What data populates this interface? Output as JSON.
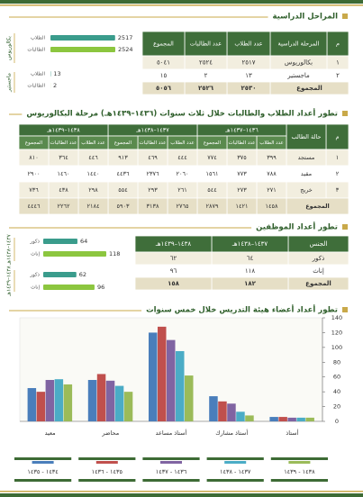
{
  "study_stages": {
    "title": "المراحل الدراسية",
    "table": {
      "header": [
        "م",
        "المرحلة الدراسية",
        "عدد الطلاب",
        "عدد الطالبات",
        "المجموع"
      ],
      "rows": [
        [
          "١",
          "بكالوريوس",
          "٢٥١٧",
          "٢٥٢٤",
          "٥٠٤١"
        ],
        [
          "٢",
          "ماجستير",
          "١٣",
          "٢",
          "١٥"
        ]
      ],
      "total": {
        "label": "المجموع",
        "values": [
          "٢٥٣٠",
          "٢٥٢٦",
          "٥٠٥٦"
        ]
      }
    }
  },
  "students": {
    "title": "تطور أعداد الطلاب والطالبات خلال ثلاث سنوات (١٤٣٦–١٤٣٩هـ) مرحلة البكالوريوس",
    "table": {
      "columns": [
        "م",
        "حالة الطالب"
      ],
      "years": [
        "١٤٣٦–١٤٣٧هـ",
        "١٤٣٧–١٤٣٨هـ",
        "١٤٣٨–١٤٣٩هـ"
      ],
      "subheaders": [
        "عدد الطلاب",
        "عدد الطالبات",
        "المجموع"
      ],
      "rows": [
        [
          "١",
          "مستجد",
          "٣٩٩",
          "٣٧٥",
          "٧٧٤",
          "٤٤٤",
          "٤٦٩",
          "٩١٣",
          "٤٤٦",
          "٣٦٤",
          "٨١٠"
        ],
        [
          "٢",
          "مقيد",
          "٧٨٨",
          "٧٧٣",
          "١٥٦١",
          "٢٠٦٠",
          "٢٣٧٦",
          "٤٤٣٦",
          "١٤٤٠",
          "١٤٦٠",
          "٢٩٠٠"
        ],
        [
          "٣",
          "خريج",
          "٢٧١",
          "٢٧٣",
          "٥٤٤",
          "٢٦١",
          "٢٩٣",
          "٥٥٤",
          "٢٩٨",
          "٤٣٨",
          "٧٣٦"
        ]
      ],
      "total": {
        "label": "المجموع",
        "values": [
          "١٤٥٨",
          "١٤٢١",
          "٢٨٧٩",
          "٢٧٦٥",
          "٣١٣٨",
          "٥٩٠٣",
          "٢١٨٤",
          "٢٢٦٢",
          "٤٤٤٦"
        ]
      }
    }
  },
  "employees": {
    "title": "تطور أعداد الموظفين",
    "table": {
      "header": [
        "الجنس",
        "١٤٣٧–١٤٣٨هـ",
        "١٤٣٨–١٤٣٩هـ"
      ],
      "rows": [
        [
          "ذكور",
          "٦٤",
          "٦٢"
        ],
        [
          "إناث",
          "١١٨",
          "٩٦"
        ],
        [
          "المجموع",
          "١٨٢",
          "١٥٨"
        ]
      ]
    }
  },
  "chart_data": [
    {
      "type": "hbar",
      "categories": [
        "بكالوريوس",
        "ماجستير"
      ],
      "series": [
        {
          "name": "الطلاب",
          "color": "#3a9c8c",
          "values": [
            2517,
            13
          ]
        },
        {
          "name": "الطالبات",
          "color": "#8cc63f",
          "values": [
            2524,
            2
          ]
        }
      ]
    },
    {
      "type": "hbar",
      "categories": [
        "١٤٣٧–١٤٣٨هـ",
        "١٤٣٨–١٤٣٩هـ"
      ],
      "series": [
        {
          "name": "ذكور",
          "color": "#3a9c8c",
          "values": [
            64,
            62
          ]
        },
        {
          "name": "إناث",
          "color": "#8cc63f",
          "values": [
            118,
            96
          ]
        }
      ]
    },
    {
      "type": "bar",
      "title": "تطور أعداد أعضاء هيئة التدريس خلال خمس سنوات",
      "categories": [
        "معيد",
        "محاضر",
        "أستاذ مساعد",
        "أستاذ مشارك",
        "أستاذ"
      ],
      "series": [
        {
          "name": "١٤٣٤ - ١٤٣٥",
          "color": "#4a7ebb",
          "values": [
            45,
            56,
            120,
            34,
            6
          ]
        },
        {
          "name": "١٤٣٥ - ١٤٣٦",
          "color": "#c0504d",
          "values": [
            40,
            64,
            128,
            27,
            6
          ]
        },
        {
          "name": "١٤٣٦ - ١٤٣٧",
          "color": "#8064a2",
          "values": [
            56,
            55,
            110,
            24,
            5
          ]
        },
        {
          "name": "١٤٣٧ - ١٤٣٨",
          "color": "#4bacc6",
          "values": [
            57,
            48,
            95,
            13,
            5
          ]
        },
        {
          "name": "١٤٣٨ - ١٤٣٩",
          "color": "#9bbb59",
          "values": [
            50,
            40,
            62,
            8,
            5
          ]
        }
      ],
      "ylim": [
        0,
        140
      ],
      "yticks": [
        0,
        20,
        40,
        60,
        80,
        100,
        120,
        140
      ],
      "y_axis_side": "right",
      "grid": false,
      "legend": "bottom"
    }
  ]
}
